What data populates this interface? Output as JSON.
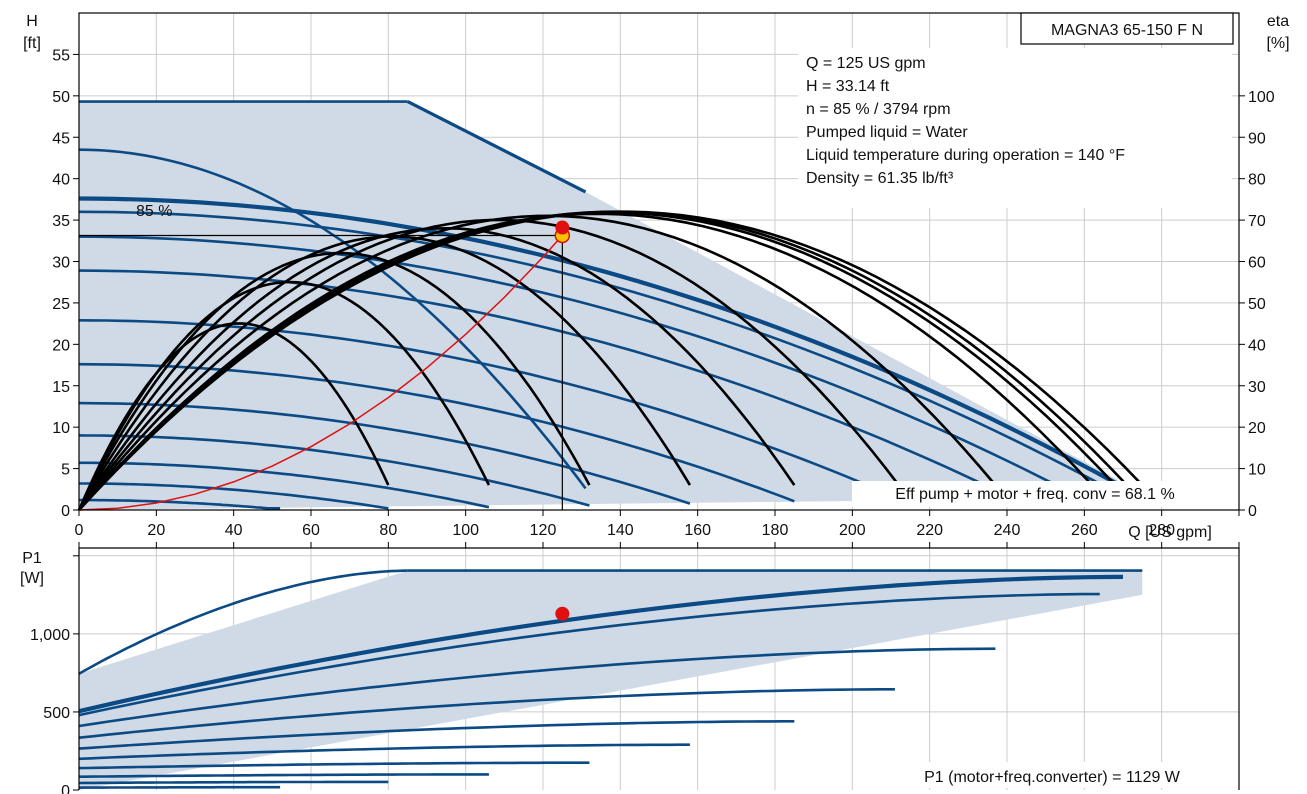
{
  "chart_data": {
    "type": "line",
    "title": "MAGNA3 65-150 F N",
    "colors": {
      "curve": "#0b4a84",
      "area": "#cfdae6",
      "efficiency": "#000000",
      "system": "#e01010",
      "point": "#e01010",
      "grid": "#cccccc"
    },
    "head_panel": {
      "ylabel": "H",
      "yunit": "[ft]",
      "y2label": "eta",
      "y2unit": "[%]",
      "xlabel": "Q [US gpm]",
      "xlim": [
        0,
        300
      ],
      "ylim": [
        0,
        60
      ],
      "y2lim": [
        0,
        120
      ],
      "xticks": [
        0,
        20,
        40,
        60,
        80,
        100,
        120,
        140,
        160,
        180,
        200,
        220,
        240,
        260,
        280
      ],
      "yticks": [
        0,
        5,
        10,
        15,
        20,
        25,
        30,
        35,
        40,
        45,
        50,
        55
      ],
      "y2ticks": [
        0,
        10,
        20,
        30,
        40,
        50,
        60,
        70,
        80,
        90,
        100
      ],
      "grid": true,
      "speed_label": "85 %",
      "info_lines": [
        "Q = 125 US gpm",
        "H = 33.14 ft",
        "n = 85 % / 3794 rpm",
        "Pumped liquid = Water",
        "Liquid temperature during operation = 140 °F",
        "Density = 61.35 lb/ft³"
      ],
      "eff_text": "Eff pump + motor + freq. conv = 68.1 %",
      "envelope": {
        "x": [
          0,
          85,
          131,
          268,
          272,
          276,
          0
        ],
        "y": [
          49.3,
          49.3,
          38.4,
          3.8,
          2.2,
          1.5,
          0
        ]
      },
      "head_curves": [
        {
          "h0": 49.3,
          "qend": 85,
          "flat": true
        },
        {
          "h0": 43.5,
          "qend": 131
        },
        {
          "h0": 37.6,
          "qend": 272,
          "width": 4.2
        },
        {
          "h0": 36.0,
          "qend": 268
        },
        {
          "h0": 33.0,
          "qend": 257
        },
        {
          "h0": 28.9,
          "qend": 240
        },
        {
          "h0": 22.9,
          "qend": 212
        },
        {
          "h0": 17.6,
          "qend": 185
        },
        {
          "h0": 12.9,
          "qend": 158
        },
        {
          "h0": 9.0,
          "qend": 132
        },
        {
          "h0": 5.7,
          "qend": 106
        },
        {
          "h0": 3.2,
          "qend": 80
        },
        {
          "h0": 1.2,
          "qend": 52
        }
      ],
      "eff_curves": [
        {
          "qend": 80,
          "peak": 42
        },
        {
          "qend": 106,
          "peak": 52
        },
        {
          "qend": 132,
          "peak": 59
        },
        {
          "qend": 158,
          "peak": 63
        },
        {
          "qend": 185,
          "peak": 65
        },
        {
          "qend": 212,
          "peak": 67
        },
        {
          "qend": 237,
          "peak": 68
        },
        {
          "qend": 262,
          "peak": 68.5
        },
        {
          "qend": 268,
          "peak": 68.8
        },
        {
          "qend": 271,
          "peak": 69
        },
        {
          "qend": 275,
          "peak": 69
        }
      ],
      "system_curve": {
        "q": [
          0,
          10,
          20,
          30,
          40,
          50,
          60,
          70,
          80,
          90,
          100,
          110,
          120,
          125
        ],
        "h": [
          0,
          0.21,
          0.85,
          1.91,
          3.39,
          5.3,
          7.64,
          10.39,
          13.57,
          17.18,
          21.21,
          25.66,
          30.54,
          33.14
        ]
      },
      "duty_point": {
        "q": 125,
        "h": 33.14,
        "eff_h": 34.1
      }
    },
    "power_panel": {
      "ylabel": "P1",
      "yunit": "[W]",
      "xlim": [
        0,
        300
      ],
      "ylim": [
        0,
        1550
      ],
      "ytick_values": [
        0,
        500,
        1000
      ],
      "ytick_labels": [
        "0",
        "500",
        "1,000"
      ],
      "extra_ticks": [
        1500
      ],
      "p1_text": "P1 (motor+freq.converter) = 1129 W",
      "envelope": {
        "x": [
          0,
          85,
          275,
          275,
          0
        ],
        "y": [
          745,
          1405,
          1405,
          1250,
          0
        ]
      },
      "power_curves": [
        {
          "p0": 745,
          "qend": 85,
          "p1": 1405
        },
        {
          "p0": 1405,
          "qend": 275,
          "p1": 1405,
          "start": 85
        },
        {
          "p0": 505,
          "qend": 270,
          "p1": 1365,
          "width": 4.2
        },
        {
          "p0": 480,
          "qend": 264,
          "p1": 1255
        },
        {
          "p0": 410,
          "qend": 237,
          "p1": 905
        },
        {
          "p0": 335,
          "qend": 211,
          "p1": 645
        },
        {
          "p0": 265,
          "qend": 185,
          "p1": 440
        },
        {
          "p0": 200,
          "qend": 158,
          "p1": 290
        },
        {
          "p0": 140,
          "qend": 132,
          "p1": 175
        },
        {
          "p0": 85,
          "qend": 106,
          "p1": 100
        },
        {
          "p0": 45,
          "qend": 80,
          "p1": 52
        },
        {
          "p0": 15,
          "qend": 52,
          "p1": 18
        }
      ],
      "duty_point": {
        "q": 125,
        "p": 1129
      }
    }
  }
}
